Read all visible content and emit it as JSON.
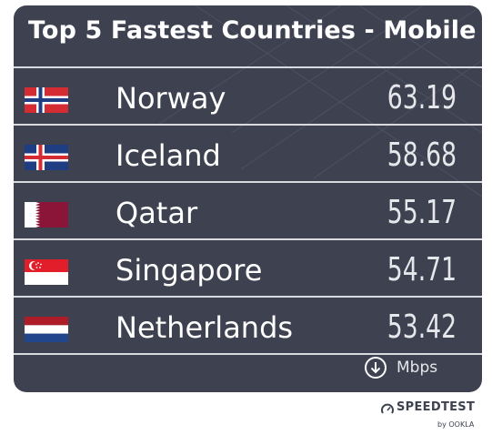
{
  "chart_data": {
    "type": "table",
    "title": "Top 5 Fastest Countries - Mobile",
    "unit": "Mbps",
    "rows": [
      {
        "country": "Norway",
        "value": "63.19",
        "flag": "norway-flag"
      },
      {
        "country": "Iceland",
        "value": "58.68",
        "flag": "iceland-flag"
      },
      {
        "country": "Qatar",
        "value": "55.17",
        "flag": "qatar-flag"
      },
      {
        "country": "Singapore",
        "value": "54.71",
        "flag": "singapore-flag"
      },
      {
        "country": "Netherlands",
        "value": "53.42",
        "flag": "netherlands-flag"
      }
    ]
  },
  "branding": {
    "name": "SPEEDTEST",
    "sub": "by OOKLA"
  },
  "icons": {
    "unit": "download-arrow-icon",
    "brand": "speedometer-icon"
  },
  "colors": {
    "card": "#3e4150",
    "text": "#ffffff",
    "divider": "#d9dadf"
  }
}
